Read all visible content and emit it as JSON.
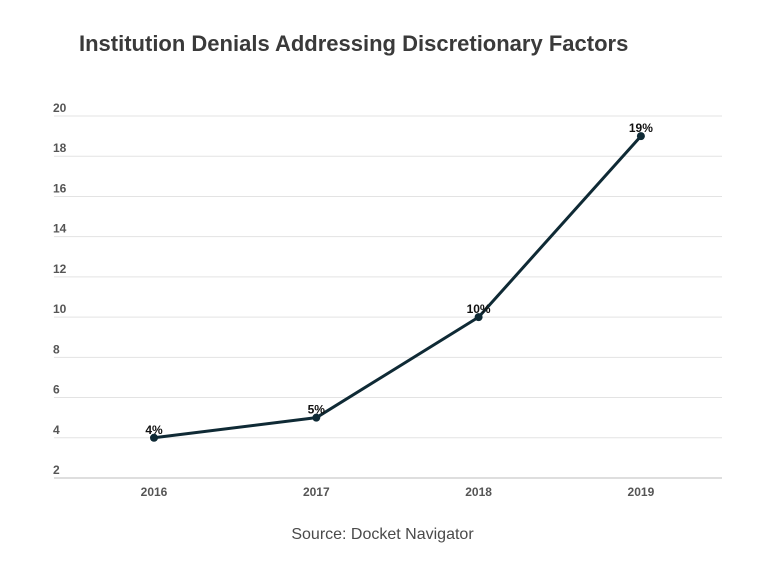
{
  "chart_data": {
    "type": "line",
    "title": "Institution Denials Addressing Discretionary Factors",
    "xlabel": "",
    "ylabel": "",
    "categories": [
      "2016",
      "2017",
      "2018",
      "2019"
    ],
    "series": [
      {
        "values": [
          4,
          5,
          10,
          19
        ],
        "labels": [
          "4%",
          "5%",
          "10%",
          "19%"
        ],
        "color": "#0f2a35"
      }
    ],
    "ylim": [
      2,
      20
    ],
    "yticks": [
      "2",
      "4",
      "6",
      "8",
      "10",
      "12",
      "14",
      "16",
      "18",
      "20"
    ],
    "grid": true,
    "legend": "none",
    "source": "Source: Docket Navigator"
  }
}
